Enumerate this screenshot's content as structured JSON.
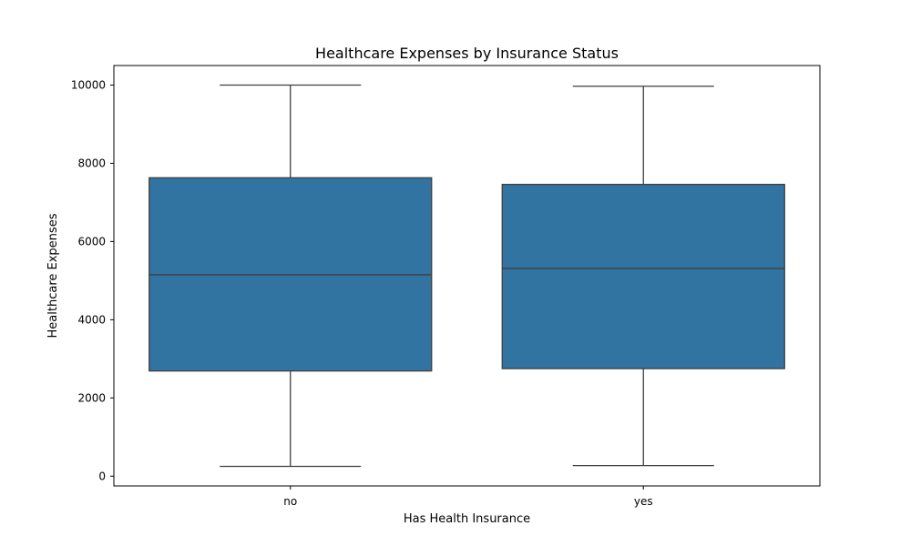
{
  "chart_data": {
    "type": "box",
    "title": "Healthcare Expenses by Insurance Status",
    "xlabel": "Has Health Insurance",
    "ylabel": "Healthcare Expenses",
    "categories": [
      "no",
      "yes"
    ],
    "boxes": [
      {
        "category": "no",
        "whisker_low": 250,
        "q1": 2690,
        "median": 5150,
        "q3": 7630,
        "whisker_high": 10000
      },
      {
        "category": "yes",
        "whisker_low": 270,
        "q1": 2750,
        "median": 5310,
        "q3": 7460,
        "whisker_high": 9970
      }
    ],
    "ylim": [
      -250,
      10500
    ],
    "yticks": [
      0,
      2000,
      4000,
      6000,
      8000,
      10000
    ],
    "box_color": "#3274a1",
    "line_color": "#3f3f3f",
    "grid": false
  }
}
